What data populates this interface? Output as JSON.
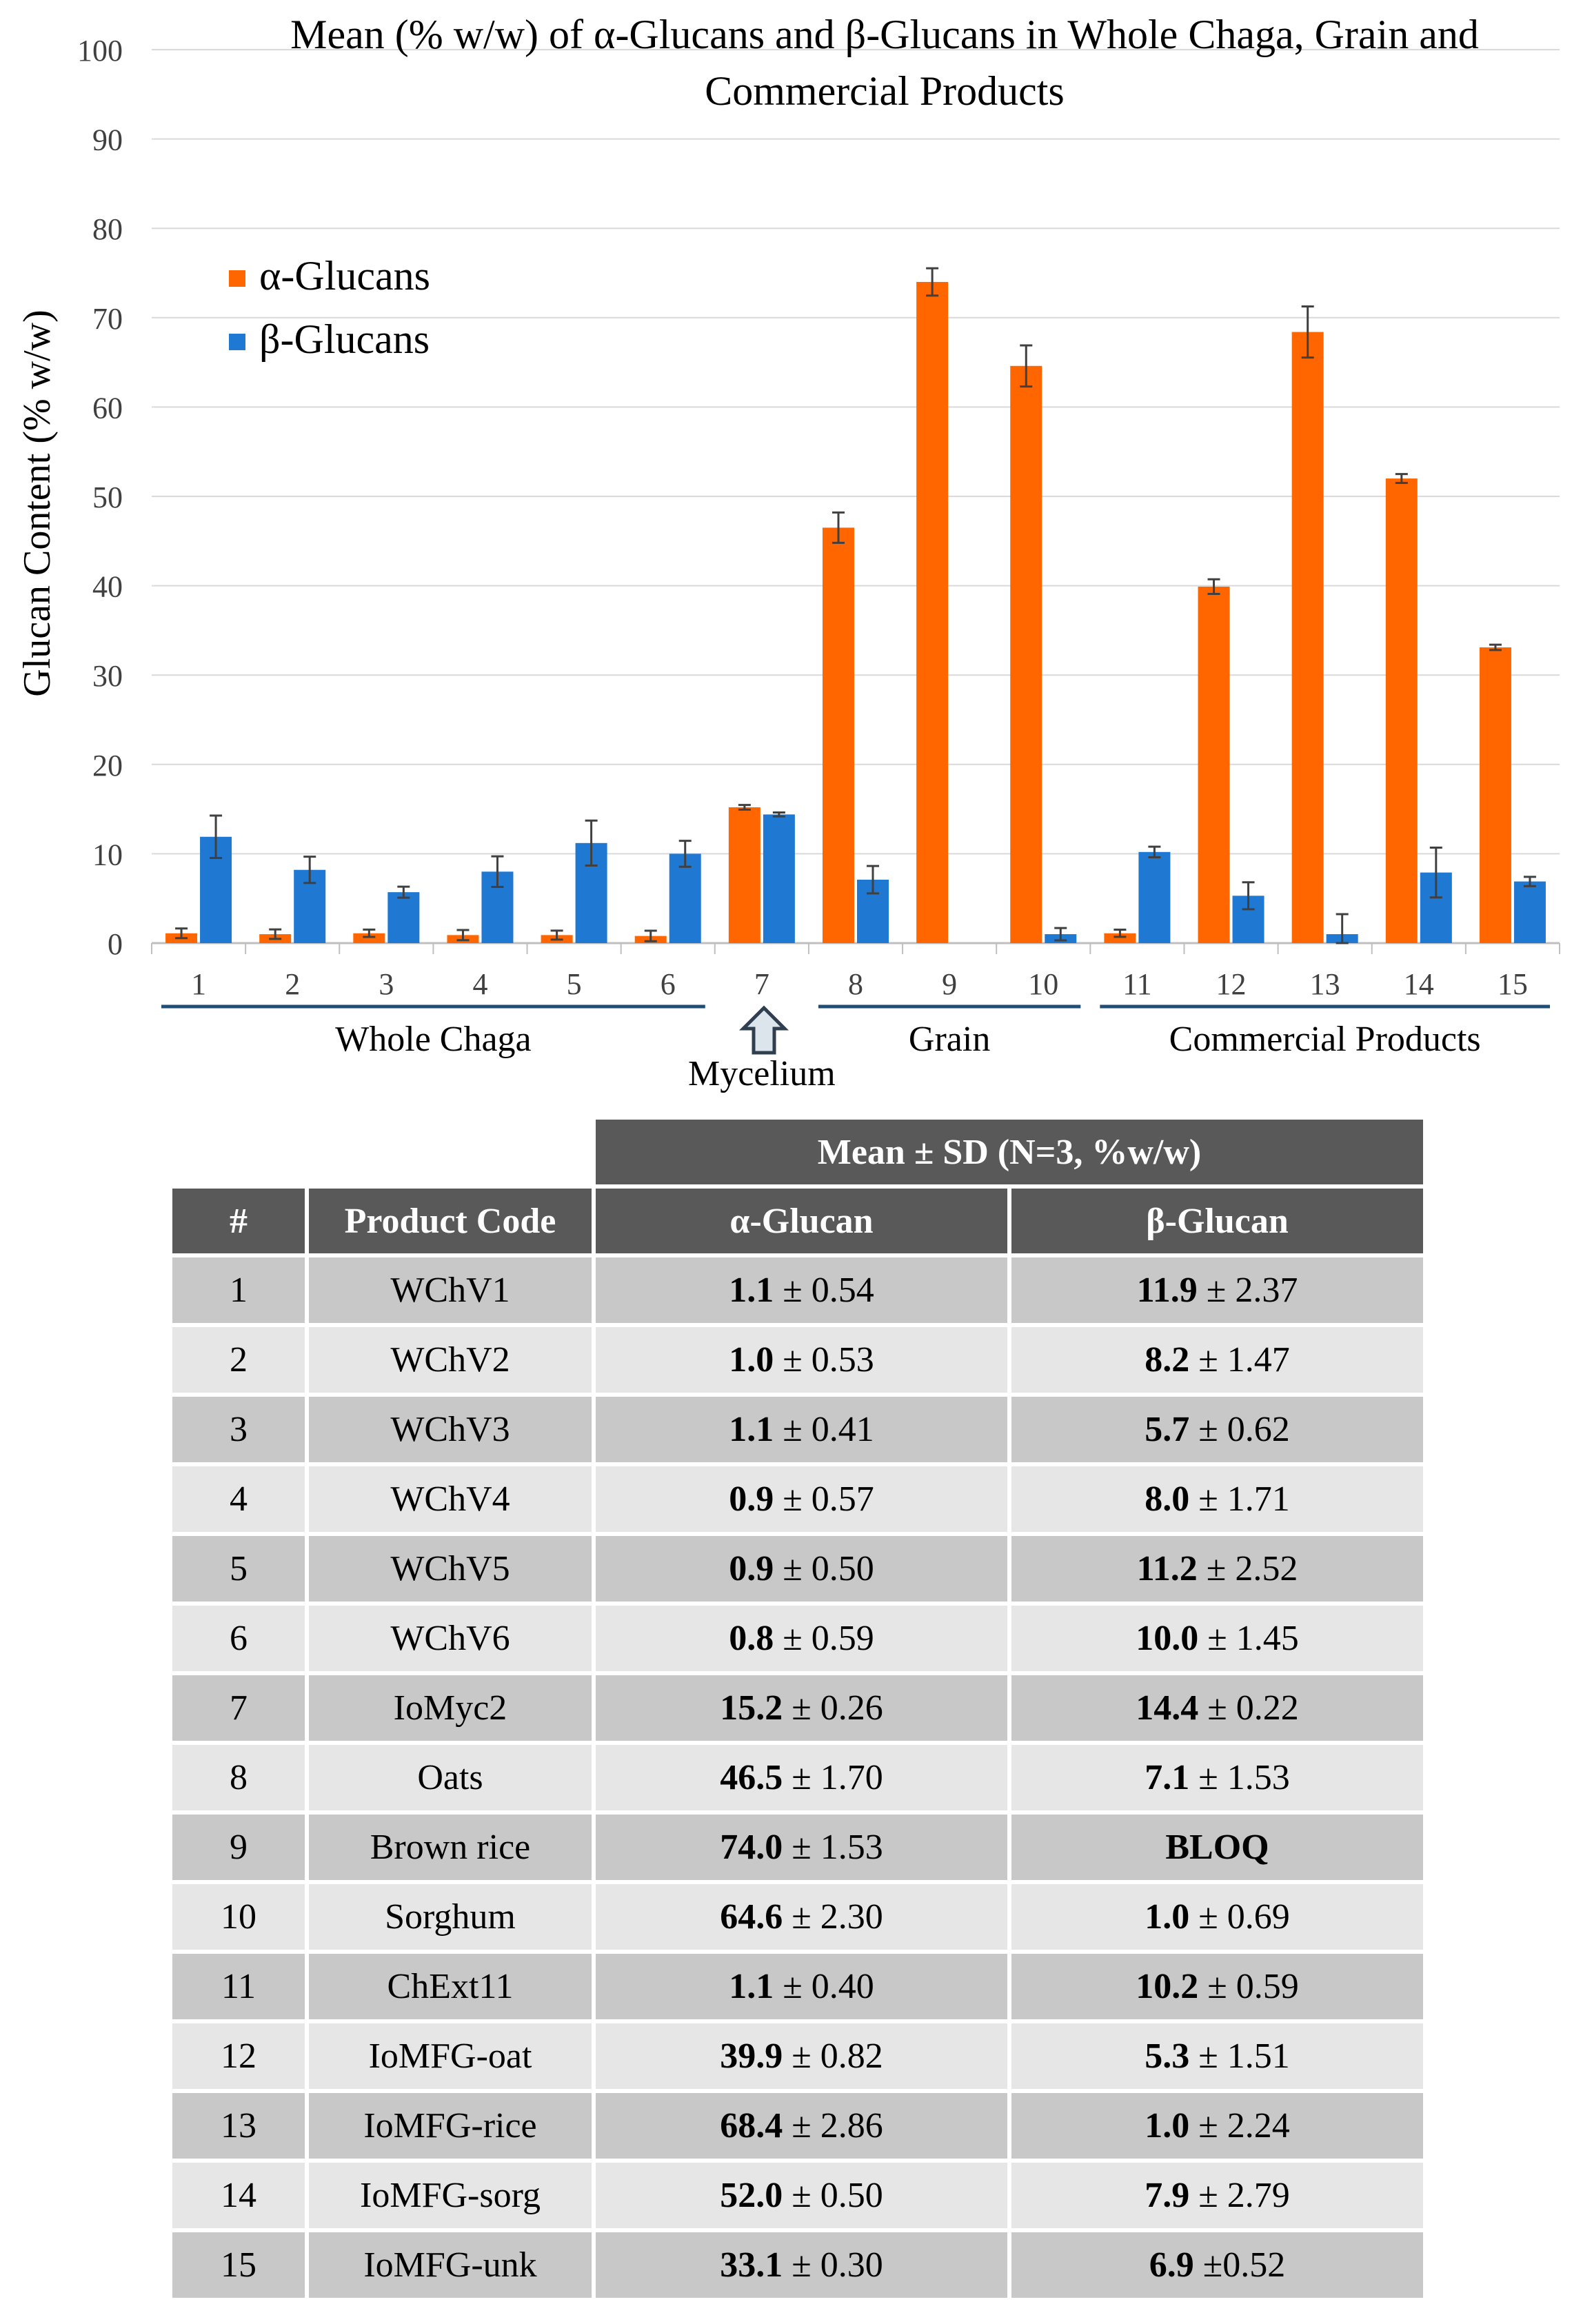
{
  "chart_data": {
    "type": "bar",
    "title": "Mean (% w/w) of α-Glucans and β-Glucans in Whole Chaga, Grain and Commercial Products",
    "ylabel": "Glucan Content  (% w/w)",
    "xlabel": "",
    "ylim": [
      0,
      100
    ],
    "yticks": [
      0,
      10,
      20,
      30,
      40,
      50,
      60,
      70,
      80,
      90,
      100
    ],
    "grid": true,
    "legend_position": "top-left",
    "categories": [
      "1",
      "2",
      "3",
      "4",
      "5",
      "6",
      "7",
      "8",
      "9",
      "10",
      "11",
      "12",
      "13",
      "14",
      "15"
    ],
    "series": [
      {
        "name": "α-Glucans",
        "color": "#ff6600",
        "values": [
          1.1,
          1.0,
          1.1,
          0.9,
          0.9,
          0.8,
          15.2,
          46.5,
          74.0,
          64.6,
          1.1,
          39.9,
          68.4,
          52.0,
          33.1
        ],
        "errors": [
          0.54,
          0.53,
          0.41,
          0.57,
          0.5,
          0.59,
          0.26,
          1.7,
          1.53,
          2.3,
          0.4,
          0.82,
          2.86,
          0.5,
          0.3
        ]
      },
      {
        "name": "β-Glucans",
        "color": "#1f78d1",
        "values": [
          11.9,
          8.2,
          5.7,
          8.0,
          11.2,
          10.0,
          14.4,
          7.1,
          null,
          1.0,
          10.2,
          5.3,
          1.0,
          7.9,
          6.9
        ],
        "errors": [
          2.37,
          1.47,
          0.62,
          1.71,
          2.52,
          1.45,
          0.22,
          1.53,
          null,
          0.69,
          0.59,
          1.51,
          2.24,
          2.79,
          0.52
        ]
      }
    ],
    "groups": [
      {
        "label": "Whole Chaga",
        "from": 1,
        "to": 6
      },
      {
        "label": "Mycelium",
        "from": 7,
        "to": 7
      },
      {
        "label": "Grain",
        "from": 8,
        "to": 10
      },
      {
        "label": "Commercial Products",
        "from": 11,
        "to": 15
      }
    ]
  },
  "table": {
    "group_header": "Mean ± SD (N=3, %w/w)",
    "headers": [
      "#",
      "Product Code",
      "α-Glucan",
      "β-Glucan"
    ],
    "rows": [
      {
        "num": "1",
        "code": "WChV1",
        "a_mean": "1.1",
        "a_sd": " ± 0.54",
        "b_mean": "11.9",
        "b_sd": " ± 2.37"
      },
      {
        "num": "2",
        "code": "WChV2",
        "a_mean": "1.0",
        "a_sd": " ± 0.53",
        "b_mean": "8.2",
        "b_sd": " ± 1.47"
      },
      {
        "num": "3",
        "code": "WChV3",
        "a_mean": "1.1",
        "a_sd": " ± 0.41",
        "b_mean": "5.7",
        "b_sd": " ± 0.62"
      },
      {
        "num": "4",
        "code": "WChV4",
        "a_mean": "0.9",
        "a_sd": " ± 0.57",
        "b_mean": "8.0",
        "b_sd": " ± 1.71"
      },
      {
        "num": "5",
        "code": "WChV5",
        "a_mean": "0.9",
        "a_sd": " ± 0.50",
        "b_mean": "11.2",
        "b_sd": " ± 2.52"
      },
      {
        "num": "6",
        "code": "WChV6",
        "a_mean": "0.8",
        "a_sd": " ± 0.59",
        "b_mean": "10.0",
        "b_sd": " ± 1.45"
      },
      {
        "num": "7",
        "code": "IoMyc2",
        "a_mean": "15.2",
        "a_sd": " ± 0.26",
        "b_mean": "14.4",
        "b_sd": " ± 0.22"
      },
      {
        "num": "8",
        "code": "Oats",
        "a_mean": "46.5",
        "a_sd": " ± 1.70",
        "b_mean": "7.1",
        "b_sd": " ± 1.53"
      },
      {
        "num": "9",
        "code": "Brown rice",
        "a_mean": "74.0",
        "a_sd": " ± 1.53",
        "b_mean": "BLOQ",
        "b_sd": ""
      },
      {
        "num": "10",
        "code": "Sorghum",
        "a_mean": "64.6",
        "a_sd": " ± 2.30",
        "b_mean": "1.0",
        "b_sd": " ± 0.69"
      },
      {
        "num": "11",
        "code": "ChExt11",
        "a_mean": "1.1",
        "a_sd": " ± 0.40",
        "b_mean": "10.2",
        "b_sd": " ± 0.59"
      },
      {
        "num": "12",
        "code": "IoMFG-oat",
        "a_mean": "39.9",
        "a_sd": " ± 0.82",
        "b_mean": "5.3",
        "b_sd": " ± 1.51"
      },
      {
        "num": "13",
        "code": "IoMFG-rice",
        "a_mean": "68.4",
        "a_sd": " ± 2.86",
        "b_mean": "1.0",
        "b_sd": " ± 2.24"
      },
      {
        "num": "14",
        "code": "IoMFG-sorg",
        "a_mean": "52.0",
        "a_sd": " ± 0.50",
        "b_mean": "7.9",
        "b_sd": " ± 2.79"
      },
      {
        "num": "15",
        "code": "IoMFG-unk",
        "a_mean": "33.1",
        "a_sd": " ± 0.30",
        "b_mean": "6.9",
        "b_sd": " ±0.52"
      }
    ]
  }
}
